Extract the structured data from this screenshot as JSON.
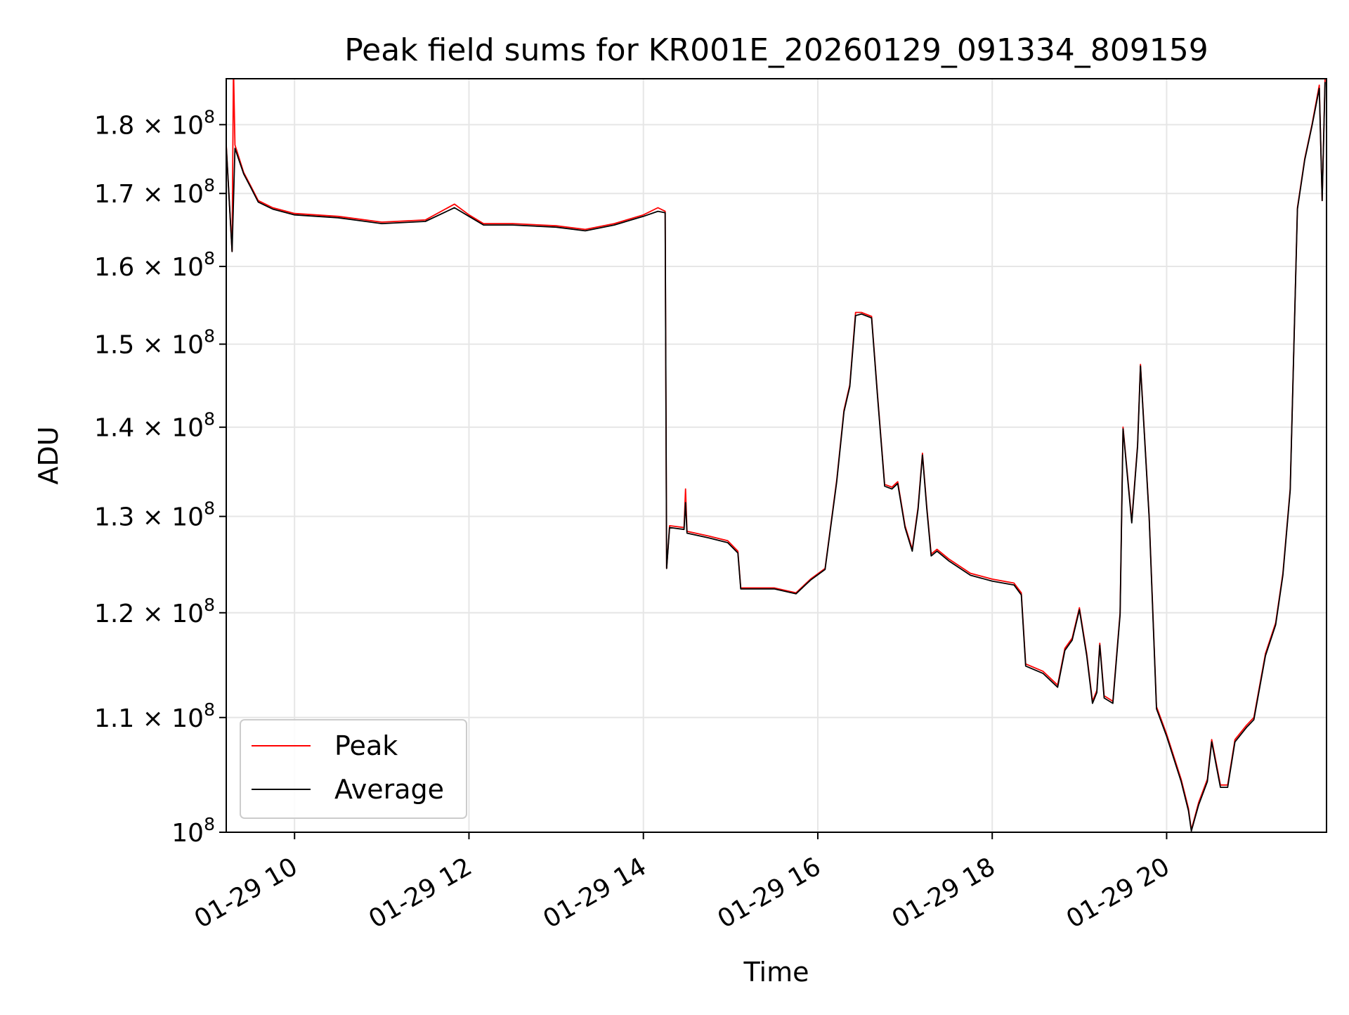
{
  "chart_data": {
    "type": "line",
    "title": "Peak field sums for KR001E_20260129_091334_809159",
    "xlabel": "Time",
    "ylabel": "ADU",
    "x_scale": "time",
    "y_scale": "log",
    "xlim": [
      "2026-01-29 09:13",
      "2026-01-29 21:50"
    ],
    "ylim": [
      100000000,
      187000000
    ],
    "grid": true,
    "legend_position": "lower-left",
    "x_ticks": [
      {
        "value": "2026-01-29 10:00",
        "label": "01-29 10"
      },
      {
        "value": "2026-01-29 12:00",
        "label": "01-29 12"
      },
      {
        "value": "2026-01-29 14:00",
        "label": "01-29 14"
      },
      {
        "value": "2026-01-29 16:00",
        "label": "01-29 16"
      },
      {
        "value": "2026-01-29 18:00",
        "label": "01-29 18"
      },
      {
        "value": "2026-01-29 20:00",
        "label": "01-29 20"
      }
    ],
    "y_ticks": [
      {
        "value": 100000000,
        "mant": "",
        "exp": "8"
      },
      {
        "value": 110000000,
        "mant": "1.1",
        "exp": "8"
      },
      {
        "value": 120000000,
        "mant": "1.2",
        "exp": "8"
      },
      {
        "value": 130000000,
        "mant": "1.3",
        "exp": "8"
      },
      {
        "value": 140000000,
        "mant": "1.4",
        "exp": "8"
      },
      {
        "value": 150000000,
        "mant": "1.5",
        "exp": "8"
      },
      {
        "value": 160000000,
        "mant": "1.6",
        "exp": "8"
      },
      {
        "value": 170000000,
        "mant": "1.7",
        "exp": "8"
      },
      {
        "value": 180000000,
        "mant": "1.8",
        "exp": "8"
      }
    ],
    "series": [
      {
        "name": "Peak",
        "color": "#ff0000",
        "points": [
          [
            "2026-01-29 09:13",
            177000000
          ],
          [
            "2026-01-29 09:17",
            162000000
          ],
          [
            "2026-01-29 09:18",
            189000000
          ],
          [
            "2026-01-29 09:19",
            177000000
          ],
          [
            "2026-01-29 09:25",
            173000000
          ],
          [
            "2026-01-29 09:30",
            171000000
          ],
          [
            "2026-01-29 09:35",
            169000000
          ],
          [
            "2026-01-29 09:45",
            168000000
          ],
          [
            "2026-01-29 10:00",
            167200000
          ],
          [
            "2026-01-29 10:30",
            166800000
          ],
          [
            "2026-01-29 11:00",
            166000000
          ],
          [
            "2026-01-29 11:30",
            166300000
          ],
          [
            "2026-01-29 11:50",
            168500000
          ],
          [
            "2026-01-29 12:00",
            167000000
          ],
          [
            "2026-01-29 12:10",
            165800000
          ],
          [
            "2026-01-29 12:30",
            165800000
          ],
          [
            "2026-01-29 13:00",
            165500000
          ],
          [
            "2026-01-29 13:20",
            165000000
          ],
          [
            "2026-01-29 13:40",
            165800000
          ],
          [
            "2026-01-29 14:00",
            167000000
          ],
          [
            "2026-01-29 14:10",
            168000000
          ],
          [
            "2026-01-29 14:15",
            167500000
          ],
          [
            "2026-01-29 14:16",
            124500000
          ],
          [
            "2026-01-29 14:18",
            129000000
          ],
          [
            "2026-01-29 14:28",
            128800000
          ],
          [
            "2026-01-29 14:29",
            133000000
          ],
          [
            "2026-01-29 14:30",
            128400000
          ],
          [
            "2026-01-29 14:45",
            127900000
          ],
          [
            "2026-01-29 14:58",
            127400000
          ],
          [
            "2026-01-29 15:05",
            126300000
          ],
          [
            "2026-01-29 15:07",
            122500000
          ],
          [
            "2026-01-29 15:30",
            122500000
          ],
          [
            "2026-01-29 15:45",
            122000000
          ],
          [
            "2026-01-29 15:55",
            123400000
          ],
          [
            "2026-01-29 16:05",
            124500000
          ],
          [
            "2026-01-29 16:13",
            134000000
          ],
          [
            "2026-01-29 16:18",
            142000000
          ],
          [
            "2026-01-29 16:22",
            145000000
          ],
          [
            "2026-01-29 16:26",
            154000000
          ],
          [
            "2026-01-29 16:30",
            154000000
          ],
          [
            "2026-01-29 16:37",
            153500000
          ],
          [
            "2026-01-29 16:41",
            144000000
          ],
          [
            "2026-01-29 16:46",
            133500000
          ],
          [
            "2026-01-29 16:51",
            133200000
          ],
          [
            "2026-01-29 16:55",
            133800000
          ],
          [
            "2026-01-29 17:00",
            129000000
          ],
          [
            "2026-01-29 17:05",
            126500000
          ],
          [
            "2026-01-29 17:09",
            131000000
          ],
          [
            "2026-01-29 17:12",
            137000000
          ],
          [
            "2026-01-29 17:15",
            131000000
          ],
          [
            "2026-01-29 17:18",
            126000000
          ],
          [
            "2026-01-29 17:22",
            126500000
          ],
          [
            "2026-01-29 17:30",
            125500000
          ],
          [
            "2026-01-29 17:45",
            124000000
          ],
          [
            "2026-01-29 18:00",
            123400000
          ],
          [
            "2026-01-29 18:15",
            123000000
          ],
          [
            "2026-01-29 18:20",
            122000000
          ],
          [
            "2026-01-29 18:23",
            115000000
          ],
          [
            "2026-01-29 18:35",
            114300000
          ],
          [
            "2026-01-29 18:45",
            113000000
          ],
          [
            "2026-01-29 18:50",
            116500000
          ],
          [
            "2026-01-29 18:55",
            117500000
          ],
          [
            "2026-01-29 19:00",
            120500000
          ],
          [
            "2026-01-29 19:05",
            116000000
          ],
          [
            "2026-01-29 19:09",
            111500000
          ],
          [
            "2026-01-29 19:12",
            112500000
          ],
          [
            "2026-01-29 19:14",
            117000000
          ],
          [
            "2026-01-29 19:17",
            112000000
          ],
          [
            "2026-01-29 19:23",
            111500000
          ],
          [
            "2026-01-29 19:28",
            120000000
          ],
          [
            "2026-01-29 19:30",
            140000000
          ],
          [
            "2026-01-29 19:36",
            129500000
          ],
          [
            "2026-01-29 19:40",
            138000000
          ],
          [
            "2026-01-29 19:42",
            147500000
          ],
          [
            "2026-01-29 19:48",
            130000000
          ],
          [
            "2026-01-29 19:53",
            111000000
          ],
          [
            "2026-01-29 20:00",
            108500000
          ],
          [
            "2026-01-29 20:10",
            104500000
          ],
          [
            "2026-01-29 20:15",
            102000000
          ],
          [
            "2026-01-29 20:17",
            100200000
          ],
          [
            "2026-01-29 20:22",
            102500000
          ],
          [
            "2026-01-29 20:28",
            104500000
          ],
          [
            "2026-01-29 20:31",
            108000000
          ],
          [
            "2026-01-29 20:37",
            104000000
          ],
          [
            "2026-01-29 20:42",
            104000000
          ],
          [
            "2026-01-29 20:47",
            108000000
          ],
          [
            "2026-01-29 20:55",
            109300000
          ],
          [
            "2026-01-29 21:00",
            110000000
          ],
          [
            "2026-01-29 21:08",
            116000000
          ],
          [
            "2026-01-29 21:15",
            119000000
          ],
          [
            "2026-01-29 21:20",
            124000000
          ],
          [
            "2026-01-29 21:25",
            133000000
          ],
          [
            "2026-01-29 21:30",
            168000000
          ],
          [
            "2026-01-29 21:35",
            175000000
          ],
          [
            "2026-01-29 21:40",
            180000000
          ],
          [
            "2026-01-29 21:45",
            186000000
          ],
          [
            "2026-01-29 21:47",
            169000000
          ],
          [
            "2026-01-29 21:49",
            187000000
          ]
        ]
      },
      {
        "name": "Average",
        "color": "#000000",
        "points": [
          [
            "2026-01-29 09:13",
            176800000
          ],
          [
            "2026-01-29 09:17",
            162000000
          ],
          [
            "2026-01-29 09:19",
            176500000
          ],
          [
            "2026-01-29 09:25",
            172800000
          ],
          [
            "2026-01-29 09:30",
            170800000
          ],
          [
            "2026-01-29 09:35",
            168800000
          ],
          [
            "2026-01-29 09:45",
            167800000
          ],
          [
            "2026-01-29 10:00",
            167000000
          ],
          [
            "2026-01-29 10:30",
            166600000
          ],
          [
            "2026-01-29 11:00",
            165800000
          ],
          [
            "2026-01-29 11:30",
            166100000
          ],
          [
            "2026-01-29 11:50",
            168000000
          ],
          [
            "2026-01-29 12:00",
            166800000
          ],
          [
            "2026-01-29 12:10",
            165600000
          ],
          [
            "2026-01-29 12:30",
            165600000
          ],
          [
            "2026-01-29 13:00",
            165300000
          ],
          [
            "2026-01-29 13:20",
            164800000
          ],
          [
            "2026-01-29 13:40",
            165600000
          ],
          [
            "2026-01-29 14:00",
            166800000
          ],
          [
            "2026-01-29 14:10",
            167500000
          ],
          [
            "2026-01-29 14:15",
            167300000
          ],
          [
            "2026-01-29 14:16",
            124500000
          ],
          [
            "2026-01-29 14:18",
            128800000
          ],
          [
            "2026-01-29 14:28",
            128600000
          ],
          [
            "2026-01-29 14:29",
            131500000
          ],
          [
            "2026-01-29 14:30",
            128200000
          ],
          [
            "2026-01-29 14:45",
            127700000
          ],
          [
            "2026-01-29 14:58",
            127200000
          ],
          [
            "2026-01-29 15:05",
            126100000
          ],
          [
            "2026-01-29 15:07",
            122400000
          ],
          [
            "2026-01-29 15:30",
            122400000
          ],
          [
            "2026-01-29 15:45",
            121900000
          ],
          [
            "2026-01-29 15:55",
            123300000
          ],
          [
            "2026-01-29 16:05",
            124400000
          ],
          [
            "2026-01-29 16:13",
            133800000
          ],
          [
            "2026-01-29 16:18",
            141800000
          ],
          [
            "2026-01-29 16:22",
            144800000
          ],
          [
            "2026-01-29 16:26",
            153600000
          ],
          [
            "2026-01-29 16:30",
            153800000
          ],
          [
            "2026-01-29 16:37",
            153300000
          ],
          [
            "2026-01-29 16:41",
            143800000
          ],
          [
            "2026-01-29 16:46",
            133300000
          ],
          [
            "2026-01-29 16:51",
            133000000
          ],
          [
            "2026-01-29 16:55",
            133600000
          ],
          [
            "2026-01-29 17:00",
            128800000
          ],
          [
            "2026-01-29 17:05",
            126300000
          ],
          [
            "2026-01-29 17:09",
            130800000
          ],
          [
            "2026-01-29 17:12",
            136800000
          ],
          [
            "2026-01-29 17:15",
            130800000
          ],
          [
            "2026-01-29 17:18",
            125800000
          ],
          [
            "2026-01-29 17:22",
            126300000
          ],
          [
            "2026-01-29 17:30",
            125300000
          ],
          [
            "2026-01-29 17:45",
            123800000
          ],
          [
            "2026-01-29 18:00",
            123200000
          ],
          [
            "2026-01-29 18:15",
            122800000
          ],
          [
            "2026-01-29 18:20",
            121800000
          ],
          [
            "2026-01-29 18:23",
            114800000
          ],
          [
            "2026-01-29 18:35",
            114100000
          ],
          [
            "2026-01-29 18:45",
            112800000
          ],
          [
            "2026-01-29 18:50",
            116300000
          ],
          [
            "2026-01-29 18:55",
            117300000
          ],
          [
            "2026-01-29 19:00",
            120300000
          ],
          [
            "2026-01-29 19:05",
            115800000
          ],
          [
            "2026-01-29 19:09",
            111300000
          ],
          [
            "2026-01-29 19:12",
            112300000
          ],
          [
            "2026-01-29 19:14",
            116800000
          ],
          [
            "2026-01-29 19:17",
            111800000
          ],
          [
            "2026-01-29 19:23",
            111300000
          ],
          [
            "2026-01-29 19:28",
            119800000
          ],
          [
            "2026-01-29 19:30",
            139800000
          ],
          [
            "2026-01-29 19:36",
            129300000
          ],
          [
            "2026-01-29 19:40",
            137800000
          ],
          [
            "2026-01-29 19:42",
            147300000
          ],
          [
            "2026-01-29 19:48",
            129800000
          ],
          [
            "2026-01-29 19:53",
            110800000
          ],
          [
            "2026-01-29 20:00",
            108300000
          ],
          [
            "2026-01-29 20:10",
            104300000
          ],
          [
            "2026-01-29 20:15",
            101800000
          ],
          [
            "2026-01-29 20:17",
            100100000
          ],
          [
            "2026-01-29 20:22",
            102300000
          ],
          [
            "2026-01-29 20:28",
            104300000
          ],
          [
            "2026-01-29 20:31",
            107800000
          ],
          [
            "2026-01-29 20:37",
            103800000
          ],
          [
            "2026-01-29 20:42",
            103800000
          ],
          [
            "2026-01-29 20:47",
            107800000
          ],
          [
            "2026-01-29 20:55",
            109100000
          ],
          [
            "2026-01-29 21:00",
            109800000
          ],
          [
            "2026-01-29 21:08",
            115800000
          ],
          [
            "2026-01-29 21:15",
            118800000
          ],
          [
            "2026-01-29 21:20",
            123800000
          ],
          [
            "2026-01-29 21:25",
            132800000
          ],
          [
            "2026-01-29 21:30",
            167800000
          ],
          [
            "2026-01-29 21:35",
            174800000
          ],
          [
            "2026-01-29 21:40",
            179800000
          ],
          [
            "2026-01-29 21:45",
            185500000
          ],
          [
            "2026-01-29 21:47",
            169000000
          ],
          [
            "2026-01-29 21:49",
            186500000
          ]
        ]
      }
    ]
  }
}
